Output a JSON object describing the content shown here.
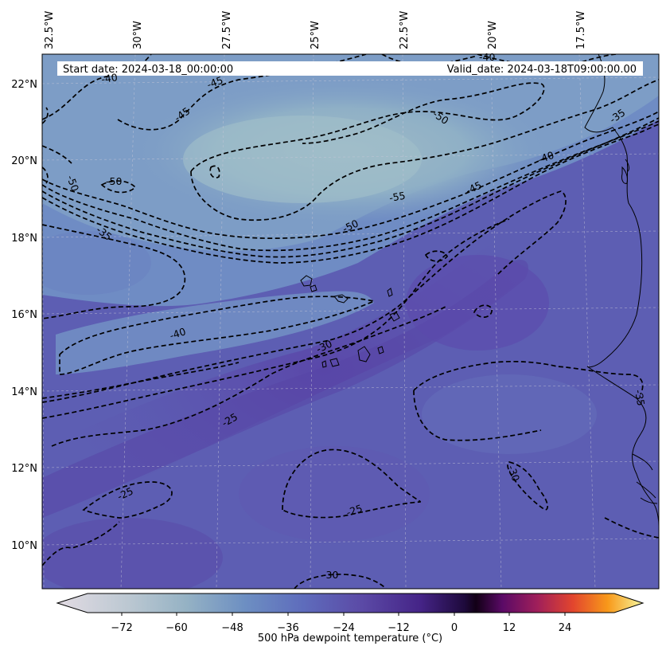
{
  "banner": {
    "start_date": "Start date: 2024-03-18_00:00:00",
    "valid_date": "Valid_date: 2024-03-18T09:00:00.00"
  },
  "axes": {
    "lon_labels": [
      "32.5°W",
      "30°W",
      "27.5°W",
      "25°W",
      "22.5°W",
      "20°W",
      "17.5°W"
    ],
    "lat_labels": [
      "22°N",
      "20°N",
      "18°N",
      "16°N",
      "14°N",
      "12°N",
      "10°N"
    ]
  },
  "contour_labels": [
    {
      "text": "-40"
    },
    {
      "text": "-45"
    },
    {
      "text": "-45"
    },
    {
      "text": "-50"
    },
    {
      "text": "-50"
    },
    {
      "text": "-35"
    },
    {
      "text": "-50"
    },
    {
      "text": "-55"
    },
    {
      "text": "-50"
    },
    {
      "text": "-45"
    },
    {
      "text": "-40"
    },
    {
      "text": "-35"
    },
    {
      "text": "-40"
    },
    {
      "text": "-30"
    },
    {
      "text": "-25"
    },
    {
      "text": "-25"
    },
    {
      "text": "-25"
    },
    {
      "text": "-30"
    },
    {
      "text": "-35"
    },
    {
      "text": "-30"
    },
    {
      "text": "-40"
    }
  ],
  "colorbar": {
    "ticks": [
      "−72",
      "−60",
      "−48",
      "−36",
      "−24",
      "−12",
      "0",
      "12",
      "24"
    ],
    "label": "500 hPa dewpoint temperature ($^\\circ$C)",
    "label_display": "500 hPa dewpoint temperature (°C)",
    "range": [
      -84,
      36
    ],
    "colors": {
      "low": "#e2dbe3",
      "light_blue": "#a8c0cc",
      "mid_blue": "#6a88bf",
      "indigo": "#5b52ac",
      "deep_purple": "#3a1a70",
      "black_purple": "#120016",
      "magenta": "#8c1a6a",
      "red": "#e2452e",
      "orange": "#f8991a",
      "yellow": "#f6f79e"
    }
  },
  "chart_data": {
    "type": "map",
    "title": "",
    "field": "500 hPa dewpoint temperature",
    "units": "°C",
    "lon_range": [
      "32.5°W",
      "16°W"
    ],
    "lat_range": [
      "9°N",
      "22.8°N"
    ],
    "contour_levels": [
      -55,
      -50,
      -45,
      -40,
      -35,
      -30,
      -25
    ],
    "colormap_range": [
      -84,
      36
    ],
    "gridlines": true
  }
}
